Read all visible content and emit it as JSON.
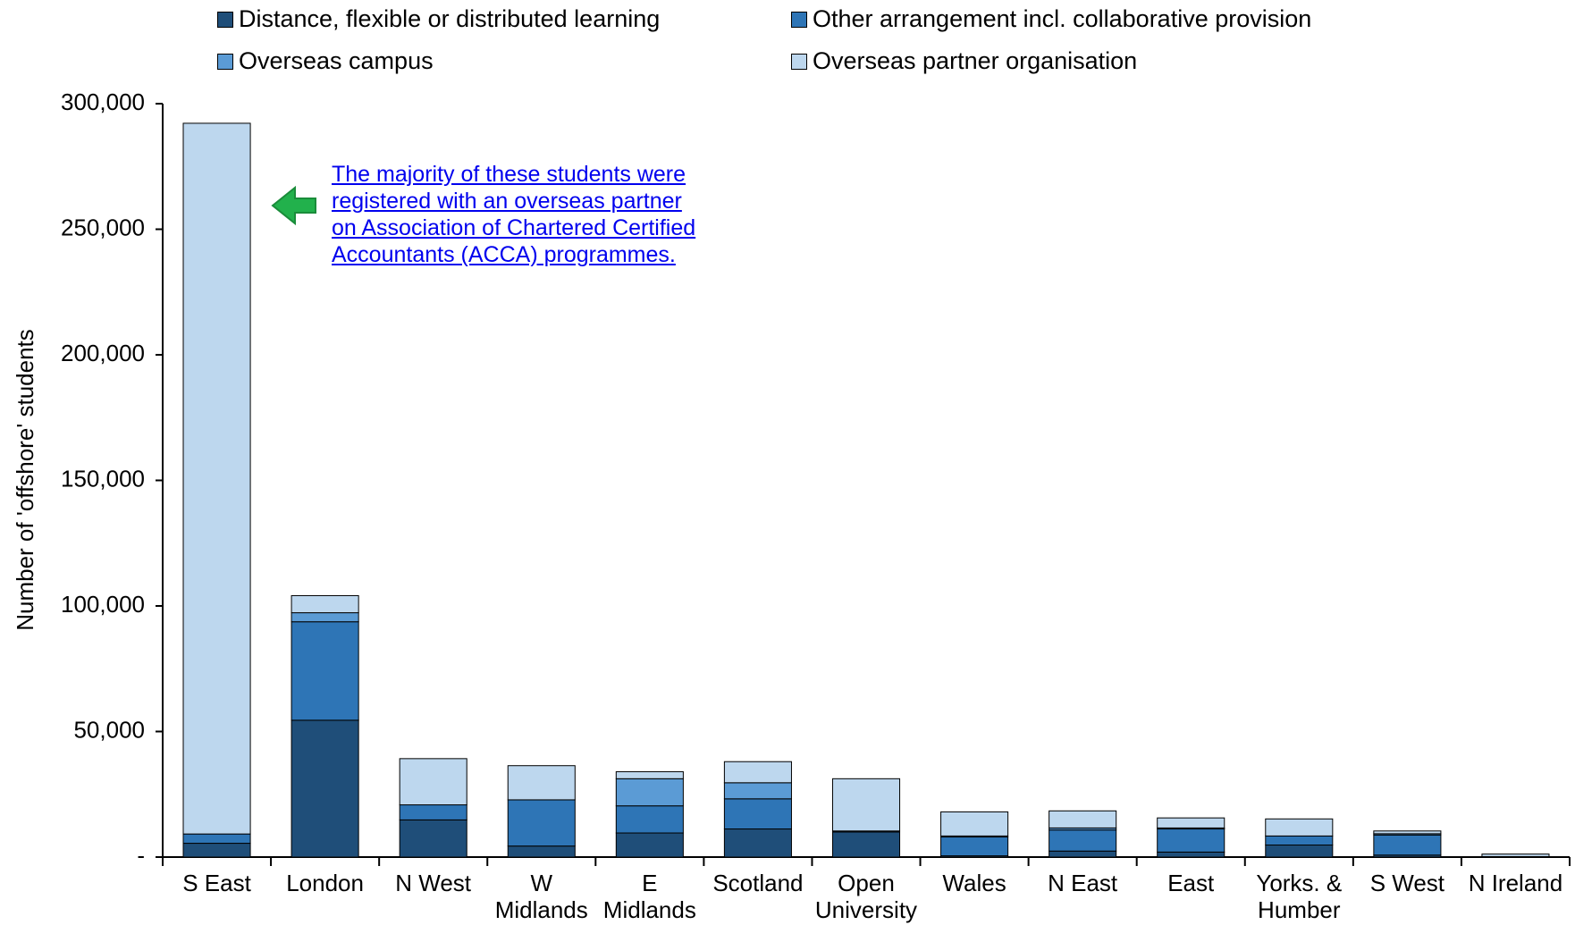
{
  "chart_data": {
    "type": "stacked_bar",
    "categories": [
      "S East",
      "London",
      "N West",
      "W Midlands",
      "E Midlands",
      "Scotland",
      "Open University",
      "Wales",
      "N East",
      "East",
      "Yorks. & Humber",
      "S West",
      "N Ireland"
    ],
    "series": [
      {
        "name": "Distance, flexible or distributed learning",
        "color": "#1f4e79",
        "values": [
          5500,
          54500,
          14800,
          4400,
          9600,
          11200,
          10000,
          500,
          2400,
          2000,
          4800,
          800,
          200
        ]
      },
      {
        "name": "Other arrangement incl. collaborative provision",
        "color": "#2e75b6",
        "values": [
          3700,
          39200,
          6000,
          18400,
          10800,
          12000,
          400,
          7500,
          8400,
          9200,
          3600,
          8000,
          0
        ]
      },
      {
        "name": "Overseas campus",
        "color": "#5b9bd5",
        "values": [
          0,
          3600,
          0,
          0,
          10800,
          6400,
          0,
          400,
          800,
          400,
          0,
          500,
          0
        ]
      },
      {
        "name": "Overseas partner organisation",
        "color": "#bdd7ee",
        "values": [
          283000,
          6800,
          18400,
          13600,
          2800,
          8400,
          20800,
          9600,
          6800,
          4000,
          6800,
          1100,
          1000
        ]
      }
    ],
    "y_label": "Number of 'offshore' students",
    "ylim": [
      0,
      300000
    ],
    "yticks": [
      {
        "value": 0,
        "label": "-"
      },
      {
        "value": 50000,
        "label": "50,000"
      },
      {
        "value": 100000,
        "label": "100,000"
      },
      {
        "value": 150000,
        "label": "150,000"
      },
      {
        "value": 200000,
        "label": "200,000"
      },
      {
        "value": 250000,
        "label": "250,000"
      },
      {
        "value": 300000,
        "label": "300,000"
      }
    ],
    "annotation": [
      "The majority of these students were",
      "registered with an overseas partner",
      "on Association of Chartered Certified",
      "Accountants (ACCA) programmes."
    ]
  }
}
